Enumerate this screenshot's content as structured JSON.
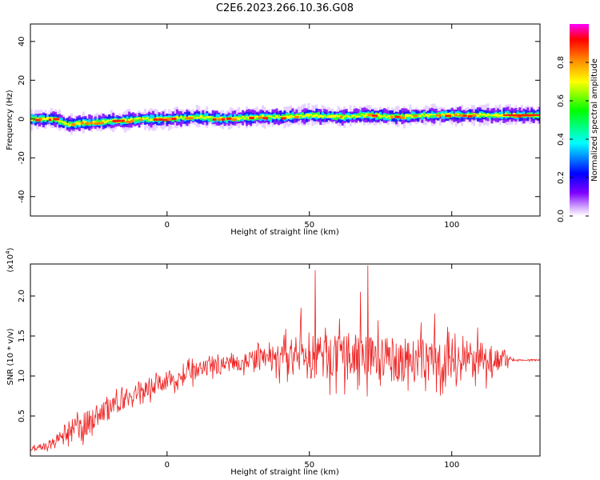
{
  "title": "C2E6.2023.266.10.36.G08",
  "chart_data": [
    {
      "type": "heatmap",
      "xlabel": "Height of straight line (km)",
      "ylabel": "Frequency (Hz)",
      "xlim": [
        -48,
        131
      ],
      "ylim": [
        -50,
        49
      ],
      "x_ticks": [
        0,
        50,
        100
      ],
      "x_tick_labels": [
        "0",
        "50",
        "100"
      ],
      "y_ticks": [
        -40,
        -20,
        0,
        20,
        40
      ],
      "y_tick_labels": [
        "-40",
        "-20",
        "0",
        "20",
        "40"
      ],
      "colorbar": {
        "label": "Normalized spectral amplitude",
        "range": [
          0.0,
          1.0
        ],
        "ticks": [
          0.0,
          0.2,
          0.4,
          0.6,
          0.8
        ],
        "tick_labels": [
          "0.0",
          "0.2",
          "0.4",
          "0.6",
          "0.8"
        ],
        "colors": [
          "#ffffff",
          "#d9b3ff",
          "#8000ff",
          "#0000ff",
          "#00ffff",
          "#00ff00",
          "#ffff00",
          "#ff8000",
          "#ff0000",
          "#ff00ff"
        ]
      },
      "ridge": {
        "x": [
          -48,
          -40,
          -35,
          -30,
          -25,
          -20,
          -15,
          -10,
          -5,
          0,
          10,
          20,
          30,
          40,
          50,
          60,
          70,
          80,
          90,
          100,
          110,
          120,
          131
        ],
        "y": [
          0,
          0,
          -3,
          -2,
          -2,
          -1,
          -1,
          0,
          0,
          0,
          1,
          0,
          1,
          1,
          2,
          1,
          2,
          1,
          2,
          2,
          2,
          2,
          2
        ]
      }
    },
    {
      "type": "line",
      "xlabel": "Height of straight line (km)",
      "ylabel": "SNR (10 * v/v)",
      "multiplier_label": "(x10",
      "multiplier_exp": "4",
      "xlim": [
        -48,
        131
      ],
      "ylim": [
        0.0,
        2.4
      ],
      "x_ticks": [
        0,
        50,
        100
      ],
      "x_tick_labels": [
        "0",
        "50",
        "100"
      ],
      "y_ticks": [
        0.5,
        1.0,
        1.5,
        2.0
      ],
      "y_tick_labels": [
        "0.5",
        "1.0",
        "1.5",
        "2.0"
      ],
      "color": "#ee2222",
      "envelope": {
        "x": [
          -48,
          -40,
          -35,
          -30,
          -25,
          -20,
          -10,
          0,
          10,
          20,
          30,
          40,
          50,
          60,
          70,
          80,
          90,
          100,
          110,
          118,
          122,
          131
        ],
        "mean": [
          0.08,
          0.15,
          0.3,
          0.35,
          0.5,
          0.6,
          0.8,
          0.95,
          1.05,
          1.15,
          1.2,
          1.22,
          1.25,
          1.22,
          1.25,
          1.2,
          1.2,
          1.2,
          1.2,
          1.22,
          1.2,
          1.2
        ],
        "amplitude": [
          0.05,
          0.12,
          0.25,
          0.3,
          0.25,
          0.2,
          0.2,
          0.2,
          0.2,
          0.18,
          0.2,
          0.35,
          0.55,
          0.5,
          0.5,
          0.5,
          0.5,
          0.5,
          0.4,
          0.25,
          0.02,
          0.02
        ]
      },
      "peaks": [
        {
          "x": 52,
          "y": 2.32
        },
        {
          "x": 70.5,
          "y": 2.38
        },
        {
          "x": 68,
          "y": 2.05
        },
        {
          "x": 47,
          "y": 1.85
        },
        {
          "x": 94,
          "y": 1.78
        }
      ]
    }
  ]
}
